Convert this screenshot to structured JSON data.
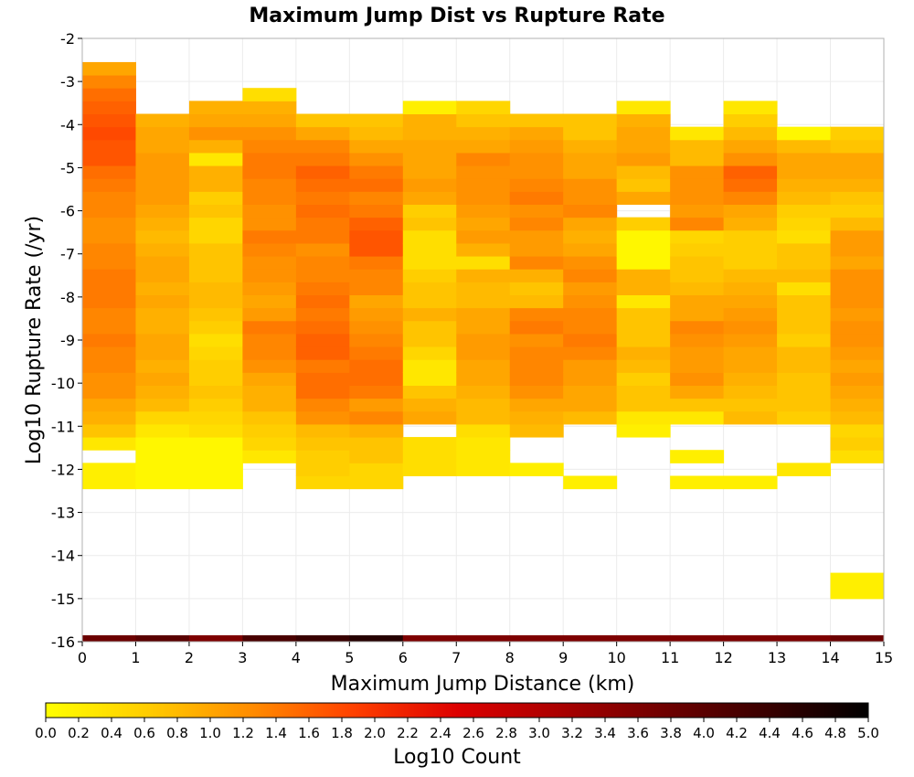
{
  "chart_data": {
    "type": "heatmap",
    "title": "Maximum Jump Dist vs Rupture Rate",
    "xlabel": "Maximum Jump Distance (km)",
    "ylabel": "Log10 Rupture Rate (/yr)",
    "xlim": [
      0,
      15
    ],
    "ylim": [
      -16,
      -2
    ],
    "x_ticks": [
      "0",
      "1",
      "2",
      "3",
      "4",
      "5",
      "6",
      "7",
      "8",
      "9",
      "10",
      "11",
      "12",
      "13",
      "14",
      "15"
    ],
    "y_ticks": [
      "-2",
      "-3",
      "-4",
      "-5",
      "-6",
      "-7",
      "-8",
      "-9",
      "-10",
      "-11",
      "-12",
      "-13",
      "-14",
      "-15",
      "-16"
    ],
    "x_bin_width": 1,
    "y_bin_height": 0.3,
    "grid": true,
    "colorbar": {
      "label": "Log10 Count",
      "min": 0.0,
      "max": 5.0,
      "ticks": [
        "0.0",
        "0.2",
        "0.4",
        "0.6",
        "0.8",
        "1.0",
        "1.2",
        "1.4",
        "1.6",
        "1.8",
        "2.0",
        "2.2",
        "2.4",
        "2.6",
        "2.8",
        "3.0",
        "3.2",
        "3.4",
        "3.6",
        "3.8",
        "4.0",
        "4.2",
        "4.4",
        "4.6",
        "4.8",
        "5.0"
      ],
      "colors": [
        "#ffff00",
        "#ffcc00",
        "#ff8c00",
        "#ff4000",
        "#dd0000",
        "#aa0000",
        "#700000",
        "#3a0000",
        "#000000"
      ]
    },
    "columns": [
      {
        "x": 0,
        "ystart": -12.45,
        "values": [
          0.2,
          0.2,
          null,
          0.3,
          0.7,
          0.9,
          1.0,
          1.2,
          1.2,
          1.3,
          1.3,
          1.4,
          1.3,
          1.3,
          1.4,
          1.4,
          1.4,
          1.3,
          1.3,
          1.2,
          1.2,
          1.3,
          1.3,
          1.4,
          1.5,
          1.7,
          1.7,
          1.8,
          1.7,
          1.6,
          1.5,
          1.3,
          1.0
        ]
      },
      {
        "x": 1,
        "ystart": -12.45,
        "values": [
          0.1,
          0.1,
          0.1,
          0.1,
          0.3,
          0.5,
          0.8,
          0.9,
          1.0,
          0.9,
          1.0,
          1.0,
          0.9,
          0.9,
          1.0,
          0.9,
          1.0,
          1.0,
          0.9,
          0.8,
          0.9,
          1.0,
          1.1,
          1.1,
          1.1,
          1.1,
          1.0,
          1.0,
          0.9
        ]
      },
      {
        "x": 2,
        "ystart": -12.45,
        "values": [
          0.1,
          0.1,
          0.1,
          0.1,
          0.4,
          0.5,
          0.6,
          0.7,
          0.6,
          0.6,
          0.5,
          0.4,
          0.6,
          0.7,
          0.8,
          0.8,
          0.7,
          0.7,
          0.7,
          0.5,
          0.5,
          0.7,
          0.6,
          0.9,
          0.9,
          0.3,
          0.9,
          1.2,
          1.0,
          0.9
        ]
      },
      {
        "x": 3,
        "ystart": -11.85,
        "values": [
          0.3,
          0.5,
          0.6,
          0.7,
          0.9,
          0.9,
          1.0,
          1.2,
          1.3,
          1.3,
          1.4,
          1.1,
          1.0,
          1.1,
          1.2,
          1.2,
          1.3,
          1.4,
          1.2,
          1.2,
          1.3,
          1.3,
          1.4,
          1.4,
          1.3,
          1.2,
          1.0,
          0.9,
          0.4
        ]
      },
      {
        "x": 4,
        "ystart": -12.45,
        "values": [
          0.5,
          0.6,
          0.6,
          0.7,
          0.8,
          1.2,
          1.3,
          1.5,
          1.5,
          1.4,
          1.6,
          1.6,
          1.5,
          1.4,
          1.5,
          1.4,
          1.3,
          1.3,
          1.2,
          1.4,
          1.4,
          1.5,
          1.4,
          1.5,
          1.6,
          1.4,
          1.3,
          1.0,
          0.7
        ]
      },
      {
        "x": 5,
        "ystart": -12.45,
        "values": [
          0.5,
          0.5,
          0.7,
          0.7,
          0.9,
          1.3,
          1.1,
          1.4,
          1.5,
          1.5,
          1.4,
          1.3,
          1.2,
          1.1,
          1.0,
          1.3,
          1.3,
          1.4,
          1.7,
          1.7,
          1.6,
          1.4,
          1.3,
          1.5,
          1.4,
          1.2,
          1.0,
          0.8,
          0.7
        ]
      },
      {
        "x": 6,
        "ystart": -12.15,
        "values": [
          0.4,
          0.4,
          0.4,
          null,
          1.0,
          0.9,
          0.7,
          0.3,
          0.3,
          0.5,
          0.7,
          0.7,
          0.9,
          0.7,
          0.7,
          0.6,
          0.4,
          0.4,
          0.4,
          0.7,
          0.6,
          1.0,
          1.1,
          1.0,
          1.0,
          1.0,
          0.9,
          0.9,
          0.2
        ]
      },
      {
        "x": 7,
        "ystart": -12.15,
        "values": [
          0.3,
          0.3,
          0.3,
          0.4,
          0.8,
          0.8,
          0.9,
          1.0,
          1.0,
          1.1,
          1.1,
          1.0,
          1.0,
          0.8,
          0.8,
          0.9,
          0.4,
          0.9,
          1.1,
          1.0,
          1.1,
          1.2,
          1.2,
          1.2,
          1.3,
          1.0,
          0.9,
          0.7,
          0.5
        ]
      },
      {
        "x": 8,
        "ystart": -12.15,
        "values": [
          0.2,
          null,
          null,
          0.8,
          0.9,
          1.0,
          1.2,
          1.3,
          1.3,
          1.3,
          1.2,
          1.4,
          1.3,
          0.8,
          0.7,
          0.9,
          1.3,
          1.1,
          1.1,
          1.3,
          1.2,
          1.4,
          1.3,
          1.2,
          1.2,
          1.1,
          1.0,
          0.7
        ]
      },
      {
        "x": 9,
        "ystart": -12.45,
        "values": [
          0.2,
          null,
          null,
          null,
          null,
          0.8,
          1.0,
          1.0,
          1.1,
          1.1,
          1.3,
          1.4,
          1.3,
          1.3,
          1.2,
          1.1,
          1.3,
          1.2,
          1.0,
          0.9,
          1.0,
          1.3,
          1.2,
          1.2,
          1.0,
          1.0,
          0.9,
          0.7,
          0.7
        ]
      },
      {
        "x": 10,
        "ystart": -11.25,
        "values": [
          0.2,
          0.3,
          0.7,
          0.7,
          0.6,
          0.8,
          0.9,
          0.7,
          0.7,
          0.7,
          0.3,
          0.9,
          0.9,
          0.1,
          0.1,
          0.1,
          0.6,
          null,
          1.0,
          0.7,
          0.8,
          1.1,
          1.0,
          1.0,
          0.9,
          0.3
        ]
      },
      {
        "x": 11,
        "ystart": -12.45,
        "values": [
          0.2,
          null,
          0.2,
          null,
          null,
          0.3,
          0.7,
          1.0,
          1.2,
          1.1,
          1.1,
          1.2,
          1.3,
          1.0,
          1.0,
          0.8,
          0.7,
          0.7,
          0.6,
          0.5,
          1.3,
          1.1,
          1.2,
          1.2,
          1.2,
          0.8,
          0.8,
          0.3
        ]
      },
      {
        "x": 12,
        "ystart": -12.45,
        "values": [
          0.2,
          null,
          null,
          null,
          null,
          0.8,
          0.7,
          0.8,
          0.9,
          1.0,
          1.0,
          1.1,
          1.2,
          1.1,
          1.0,
          0.9,
          0.8,
          0.6,
          0.6,
          0.6,
          0.9,
          1.0,
          1.3,
          1.5,
          1.6,
          1.2,
          1.0,
          0.8,
          0.6,
          0.3
        ]
      },
      {
        "x": 13,
        "ystart": -12.15,
        "values": [
          0.3,
          null,
          null,
          null,
          0.6,
          0.7,
          0.7,
          0.7,
          0.8,
          0.8,
          0.6,
          0.7,
          0.7,
          0.7,
          0.4,
          0.8,
          0.7,
          0.7,
          0.4,
          0.5,
          0.6,
          0.8,
          0.9,
          1.0,
          1.0,
          0.8,
          0.1
        ]
      },
      {
        "x": 14,
        "ystart": -11.85,
        "values": [
          0.4,
          0.6,
          0.5,
          0.8,
          0.9,
          1.0,
          1.1,
          1.0,
          1.1,
          1.2,
          1.2,
          1.1,
          1.2,
          1.2,
          1.2,
          1.0,
          1.1,
          1.1,
          0.8,
          0.6,
          0.7,
          0.9,
          1.0,
          1.0,
          0.7,
          0.6
        ]
      },
      {
        "x": 14,
        "ystart": -15.0,
        "values": [
          0.2,
          0.2
        ]
      }
    ],
    "strip": {
      "y_range": [
        -16,
        -15.85
      ],
      "values": [
        3.8,
        4.0,
        3.6,
        4.2,
        4.4,
        4.6,
        3.6,
        3.6,
        3.6,
        3.6,
        3.6,
        3.6,
        3.6,
        3.6,
        3.8
      ]
    }
  }
}
